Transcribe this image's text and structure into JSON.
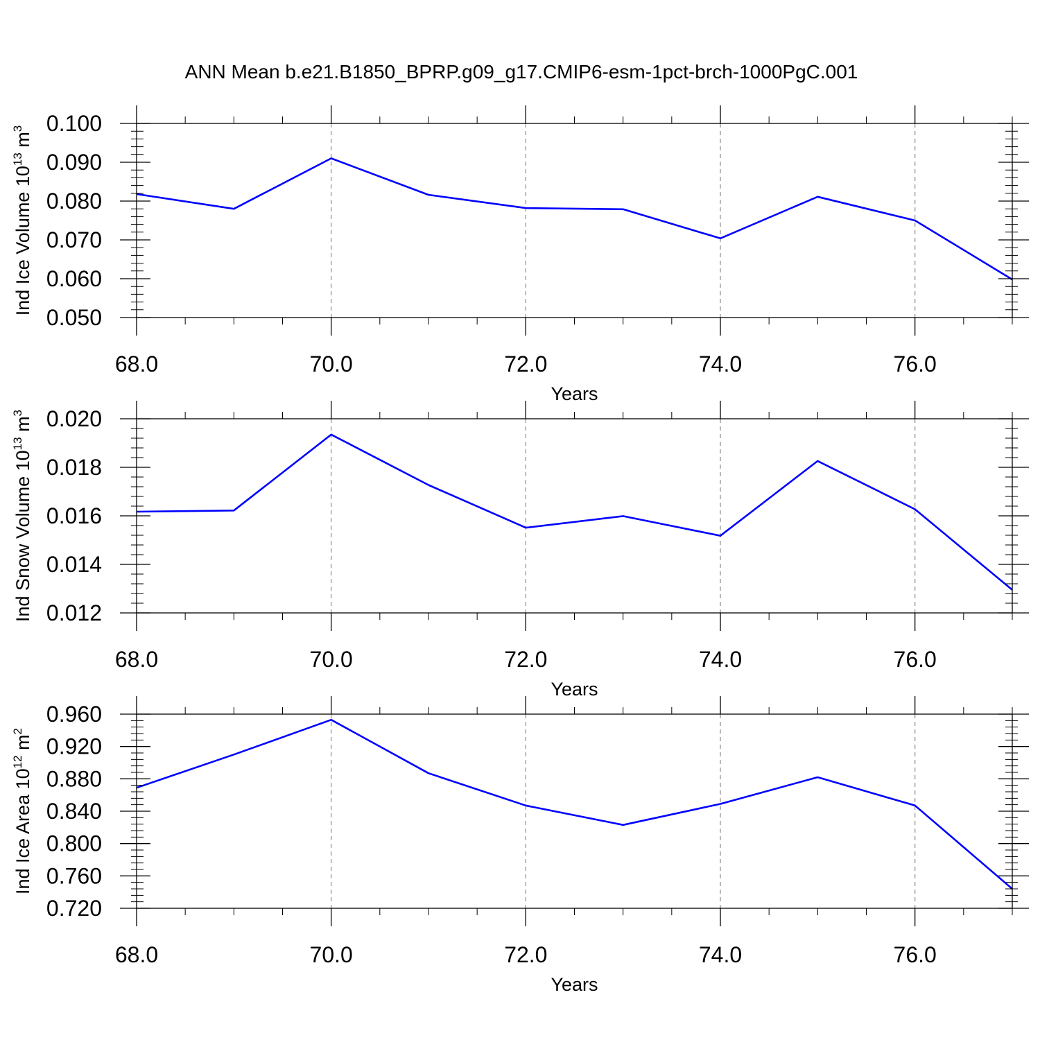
{
  "figure": {
    "title": "ANN Mean b.e21.B1850_BPRP.g09_g17.CMIP6-esm-1pct-brch-1000PgC.001",
    "line_color": "#0000ff"
  },
  "chart_data": [
    {
      "type": "line",
      "xlabel": "Years",
      "ylabel": {
        "text": "Ind Ice Volume 10",
        "exp": "13",
        "unit": " m",
        "unit_exp": "3"
      },
      "xlim": [
        68,
        77
      ],
      "ylim": [
        0.05,
        0.1
      ],
      "x_ticks": [
        "68.0",
        "70.0",
        "72.0",
        "74.0",
        "76.0"
      ],
      "y_ticks": [
        "0.050",
        "0.060",
        "0.070",
        "0.080",
        "0.090",
        "0.100"
      ],
      "grid": "vertical dashed",
      "x": [
        68,
        69,
        70,
        71,
        72,
        73,
        74,
        75,
        76,
        77
      ],
      "values": [
        0.0818,
        0.078,
        0.091,
        0.0816,
        0.0782,
        0.0779,
        0.0704,
        0.0811,
        0.075,
        0.0598
      ]
    },
    {
      "type": "line",
      "xlabel": "Years",
      "ylabel": {
        "text": "Ind Snow Volume 10",
        "exp": "13",
        "unit": " m",
        "unit_exp": "3"
      },
      "xlim": [
        68,
        77
      ],
      "ylim": [
        0.012,
        0.02
      ],
      "x_ticks": [
        "68.0",
        "70.0",
        "72.0",
        "74.0",
        "76.0"
      ],
      "y_ticks": [
        "0.012",
        "0.014",
        "0.016",
        "0.018",
        "0.020"
      ],
      "grid": "vertical dashed",
      "x": [
        68,
        69,
        70,
        71,
        72,
        73,
        74,
        75,
        76,
        77
      ],
      "values": [
        0.01617,
        0.01622,
        0.01935,
        0.01727,
        0.01551,
        0.01599,
        0.01518,
        0.01826,
        0.01627,
        0.01295
      ]
    },
    {
      "type": "line",
      "xlabel": "Years",
      "ylabel": {
        "text": "Ind Ice Area 10",
        "exp": "12",
        "unit": " m",
        "unit_exp": "2"
      },
      "xlim": [
        68,
        77
      ],
      "ylim": [
        0.72,
        0.96
      ],
      "x_ticks": [
        "68.0",
        "70.0",
        "72.0",
        "74.0",
        "76.0"
      ],
      "y_ticks": [
        "0.720",
        "0.760",
        "0.800",
        "0.840",
        "0.880",
        "0.920",
        "0.960"
      ],
      "grid": "vertical dashed",
      "x": [
        68,
        69,
        70,
        71,
        72,
        73,
        74,
        75,
        76,
        77
      ],
      "values": [
        0.869,
        0.91,
        0.953,
        0.887,
        0.847,
        0.823,
        0.849,
        0.882,
        0.847,
        0.744
      ]
    }
  ]
}
